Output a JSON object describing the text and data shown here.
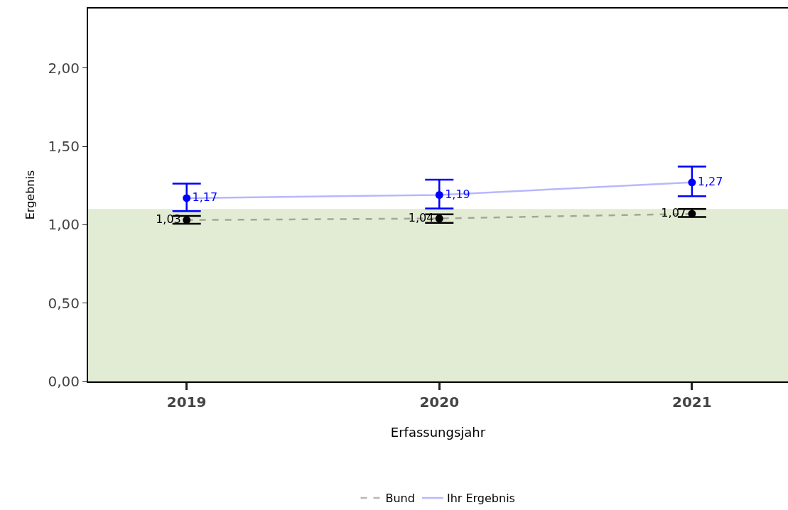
{
  "chart_data": {
    "type": "line",
    "xlabel": "Erfassungsjahr",
    "ylabel": "Ergebnis",
    "categories": [
      "2019",
      "2020",
      "2021"
    ],
    "series": [
      {
        "name": "Bund",
        "color": "#000000",
        "line_style": "dashed",
        "values": [
          1.03,
          1.04,
          1.07
        ],
        "errors": [
          [
            1.006,
            1.056
          ],
          [
            1.012,
            1.066
          ],
          [
            1.05,
            1.1
          ]
        ]
      },
      {
        "name": "Ihr Ergebnis",
        "color": "#0000ff",
        "line_style": "solid",
        "values": [
          1.17,
          1.19,
          1.27
        ],
        "errors": [
          [
            1.087,
            1.262
          ],
          [
            1.104,
            1.288
          ],
          [
            1.182,
            1.371
          ]
        ]
      }
    ],
    "value_labels": [
      [
        "1,03",
        "1,04",
        "1,07"
      ],
      [
        "1,17",
        "1,19",
        "1,27"
      ]
    ],
    "bands": [
      {
        "axis": "y",
        "from": 0,
        "to": 1.1,
        "color": "#e2ebd3"
      }
    ],
    "ylim": [
      0,
      2.38
    ],
    "yticks": [
      {
        "value": 0,
        "label": "0,00"
      },
      {
        "value": 0.5,
        "label": "0,50"
      },
      {
        "value": 1,
        "label": "1,00"
      },
      {
        "value": 1.5,
        "label": "1,50"
      },
      {
        "value": 2,
        "label": "2,00"
      }
    ],
    "marker": "circle",
    "grid": false,
    "legend": "bottom"
  }
}
